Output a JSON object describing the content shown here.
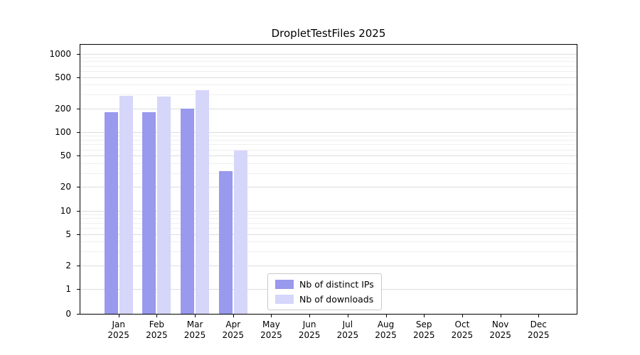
{
  "title": "DropletTestFiles 2025",
  "chart_data": {
    "type": "bar",
    "title": "DropletTestFiles 2025",
    "categories": [
      "Jan",
      "Feb",
      "Mar",
      "Apr",
      "May",
      "Jun",
      "Jul",
      "Aug",
      "Sep",
      "Oct",
      "Nov",
      "Dec"
    ],
    "year_label": "2025",
    "series": [
      {
        "name": "Nb of distinct IPs",
        "color": "#9999ee",
        "values": [
          180,
          180,
          200,
          32,
          0,
          0,
          0,
          0,
          0,
          0,
          0,
          0
        ]
      },
      {
        "name": "Nb of downloads",
        "color": "#d6d6fa",
        "values": [
          290,
          285,
          340,
          58,
          0,
          0,
          0,
          0,
          0,
          0,
          0,
          0
        ]
      }
    ],
    "yticks": [
      0,
      1,
      2,
      5,
      10,
      20,
      50,
      100,
      200,
      500,
      1000
    ],
    "yscale": "log",
    "ylim": [
      0,
      1300
    ],
    "grid": true,
    "legend_position": "bottom-center",
    "colors": {
      "axis": "#000000",
      "grid_major": "#dcdcdc",
      "grid_minor": "#efefef"
    }
  }
}
